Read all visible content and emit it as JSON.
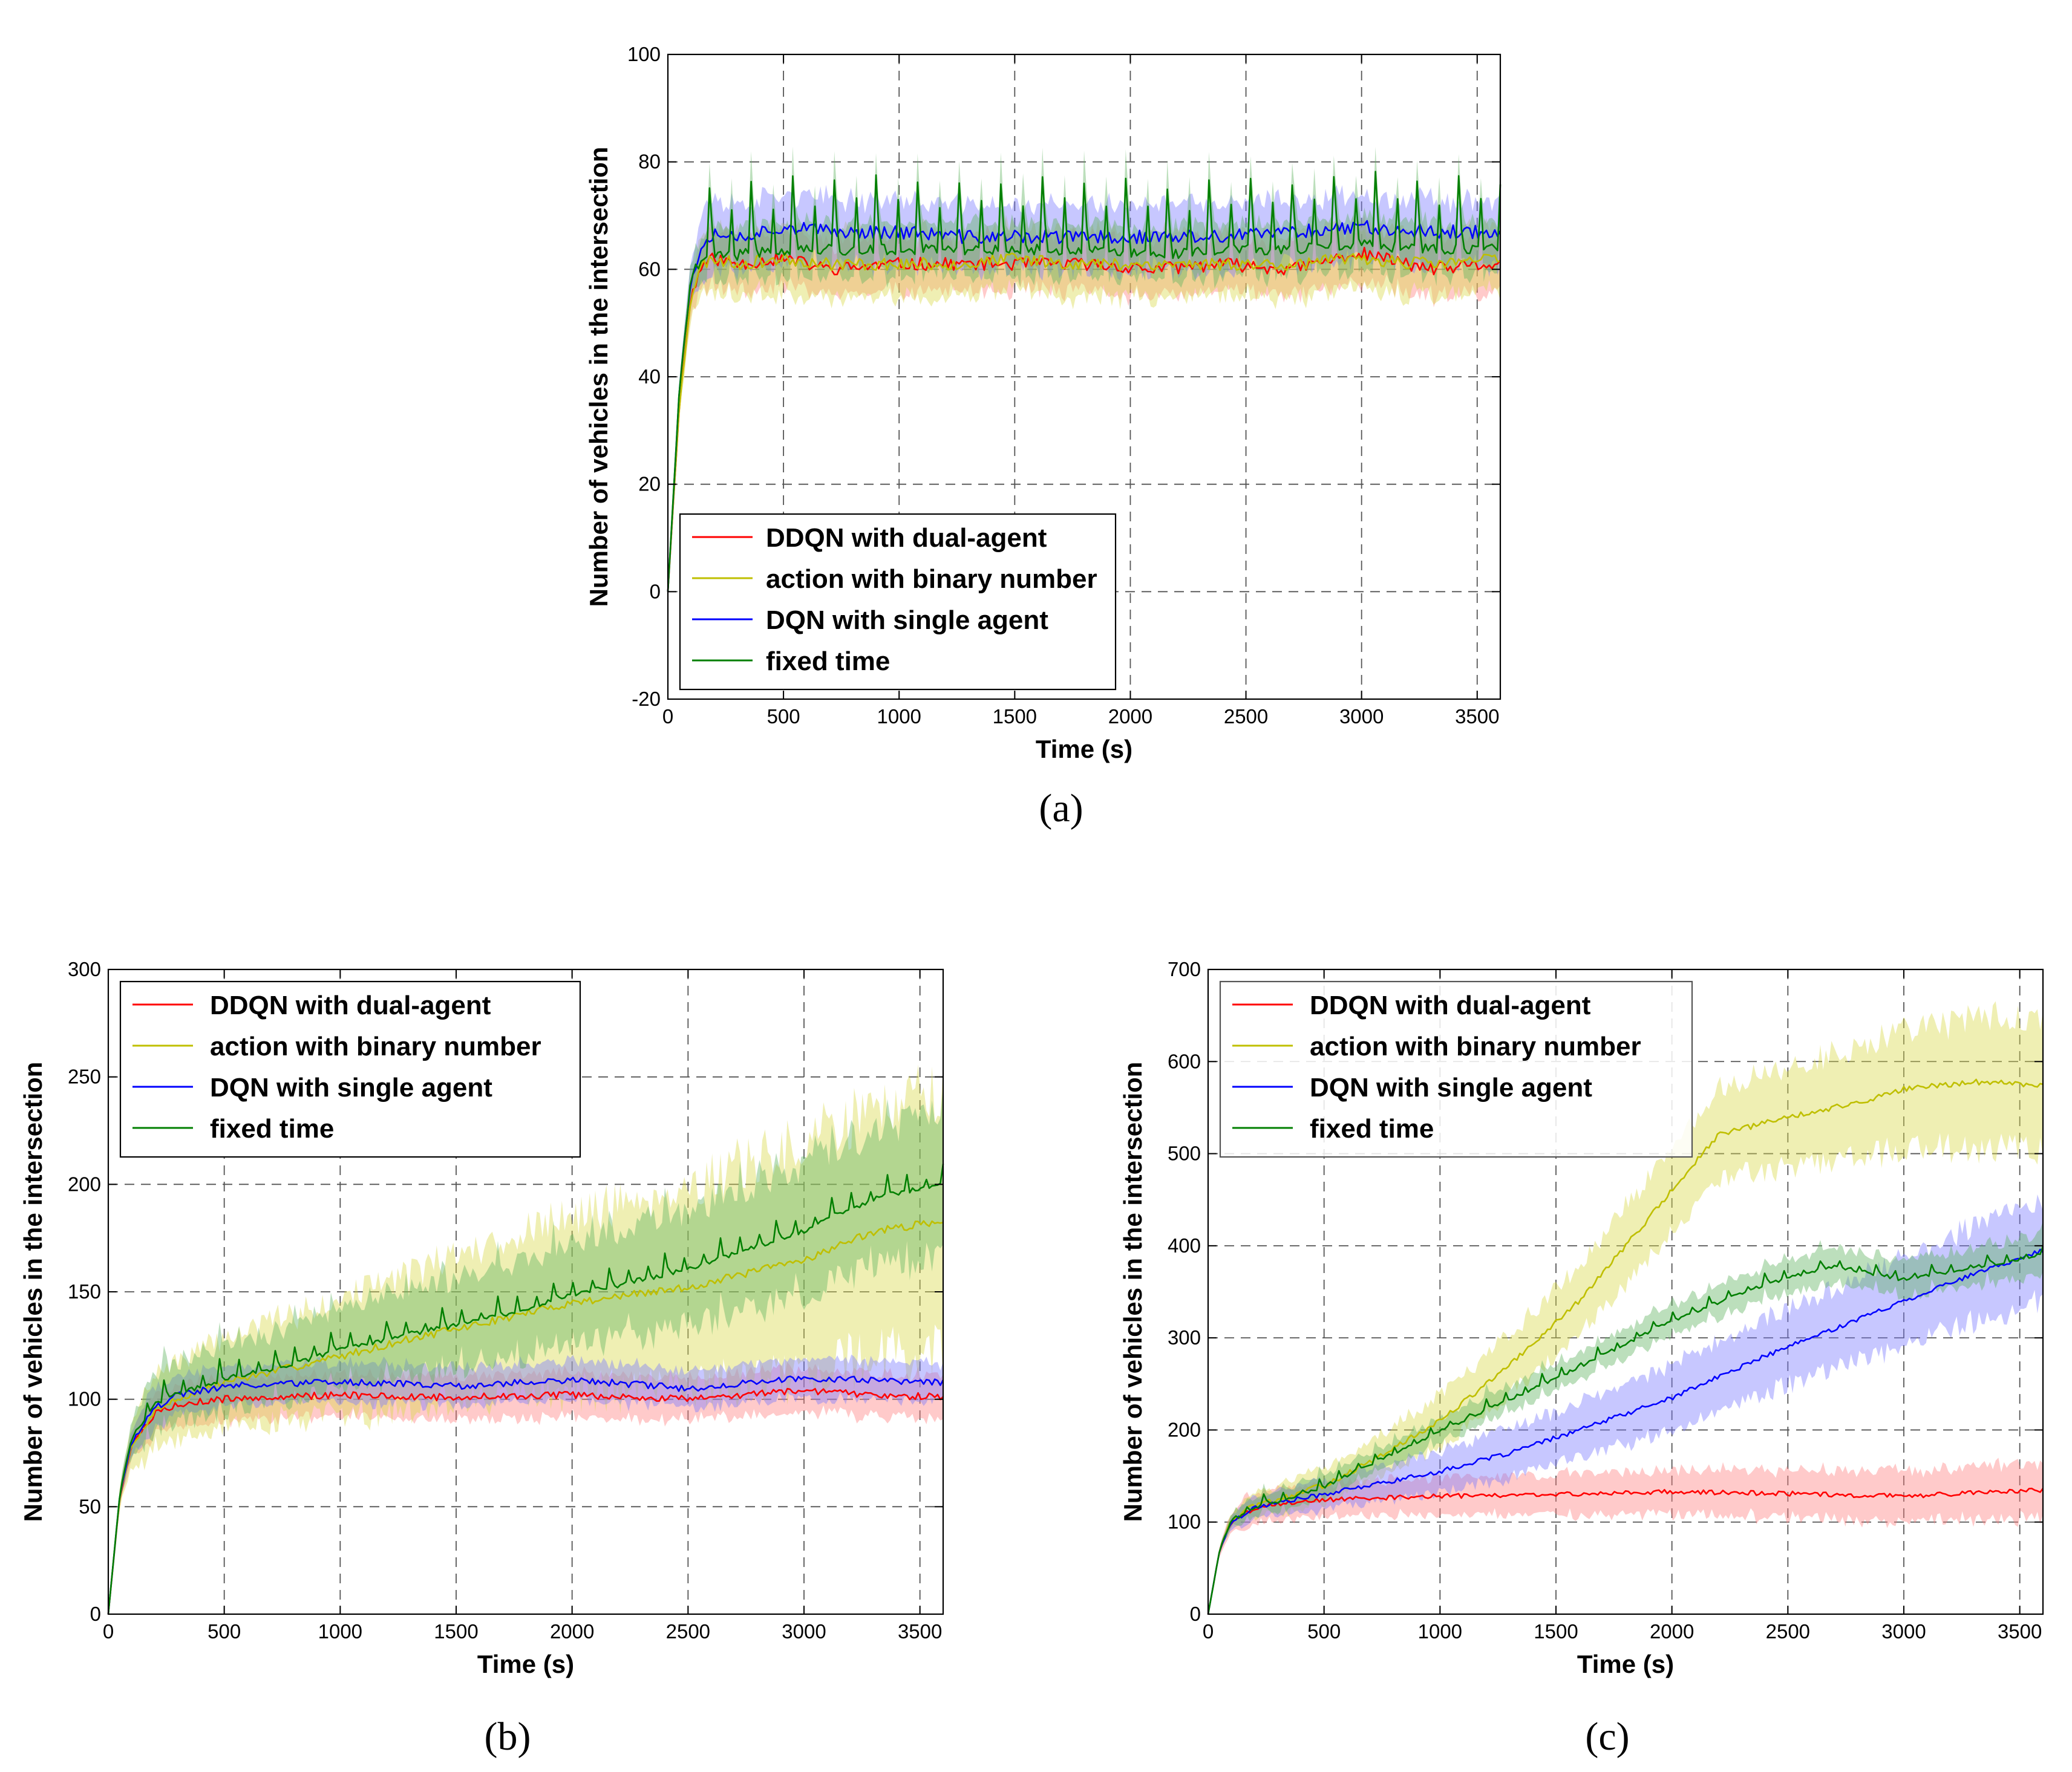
{
  "chart_data": [
    {
      "id": "a",
      "caption": "(a)",
      "type": "line",
      "title": "",
      "xlabel": "Time (s)",
      "ylabel": "Number of vehicles in the intersection",
      "xlim": [
        0,
        3600
      ],
      "ylim": [
        -20,
        100
      ],
      "xticks": [
        0,
        500,
        1000,
        1500,
        2000,
        2500,
        3000,
        3500
      ],
      "yticks": [
        -20,
        0,
        20,
        40,
        60,
        80,
        100
      ],
      "grid": true,
      "legend": {
        "location": "lower-left",
        "entries": [
          "DDQN with dual-agent",
          "action with binary number",
          "DQN with single agent",
          "fixed time"
        ]
      },
      "series": [
        {
          "name": "DDQN with dual-agent",
          "color": "#ff0000",
          "shade": "#ff8080",
          "x": [
            0,
            50,
            100,
            150,
            200,
            300,
            500,
            700,
            1000,
            1300,
            1500,
            1800,
            2100,
            2400,
            2700,
            3000,
            3300,
            3600
          ],
          "values": [
            0,
            35,
            55,
            61,
            62,
            61,
            62,
            60,
            61,
            61,
            61,
            61,
            60,
            61,
            60,
            63,
            60,
            61
          ],
          "band": 5,
          "spike": 0,
          "period": 0,
          "noise": 1.2,
          "seed": 11
        },
        {
          "name": "action with binary number",
          "color": "#bfbf00",
          "shade": "#d8d84a",
          "x": [
            0,
            50,
            100,
            150,
            200,
            300,
            500,
            700,
            1000,
            1300,
            1500,
            1800,
            2100,
            2400,
            2700,
            3000,
            3300,
            3600
          ],
          "values": [
            0,
            35,
            55,
            61,
            62,
            61,
            62,
            61,
            61,
            61,
            62,
            61,
            61,
            61,
            61,
            62,
            61,
            62
          ],
          "band": 6,
          "spike": 0,
          "period": 0,
          "noise": 1.2,
          "seed": 23
        },
        {
          "name": "DQN with single agent",
          "color": "#0000ff",
          "shade": "#7a7aff",
          "x": [
            0,
            50,
            100,
            150,
            200,
            300,
            500,
            700,
            1000,
            1300,
            1500,
            1800,
            2100,
            2400,
            2700,
            3000,
            3300,
            3600
          ],
          "values": [
            0,
            38,
            58,
            65,
            67,
            66,
            68,
            67,
            67,
            66,
            66,
            66,
            66,
            66,
            67,
            68,
            67,
            67
          ],
          "band": 6,
          "spike": 0,
          "period": 0,
          "noise": 1.3,
          "seed": 37
        },
        {
          "name": "fixed time",
          "color": "#007f00",
          "shade": "#5fb35f",
          "x": [
            0,
            50,
            100,
            150,
            200,
            300,
            500,
            700,
            1000,
            1300,
            1500,
            1800,
            2100,
            2400,
            2700,
            3000,
            3300,
            3600
          ],
          "values": [
            0,
            38,
            58,
            64,
            65,
            65,
            66,
            66,
            66,
            66,
            66,
            66,
            65,
            66,
            66,
            67,
            66,
            66
          ],
          "band": 5,
          "spike": 13,
          "period": 90,
          "noise": 1.0,
          "seed": 41
        }
      ]
    },
    {
      "id": "b",
      "caption": "(b)",
      "type": "line",
      "title": "",
      "xlabel": "Time (s)",
      "ylabel": "Number of vehicles in the intersection",
      "xlim": [
        0,
        3600
      ],
      "ylim": [
        0,
        300
      ],
      "xticks": [
        0,
        500,
        1000,
        1500,
        2000,
        2500,
        3000,
        3500
      ],
      "yticks": [
        0,
        50,
        100,
        150,
        200,
        250,
        300
      ],
      "grid": true,
      "legend": {
        "location": "top-left",
        "entries": [
          "DDQN with dual-agent",
          "action with binary number",
          "DQN with single agent",
          "fixed time"
        ]
      },
      "series": [
        {
          "name": "DDQN with dual-agent",
          "color": "#ff0000",
          "shade": "#ff8080",
          "x": [
            0,
            50,
            100,
            200,
            300,
            500,
            700,
            1000,
            1300,
            1500,
            2000,
            2500,
            3000,
            3300,
            3600
          ],
          "values": [
            0,
            55,
            78,
            93,
            98,
            100,
            101,
            102,
            101,
            101,
            102,
            100,
            104,
            102,
            101
          ],
          "band": 10,
          "spike": 0,
          "period": 0,
          "noise": 1.6,
          "seed": 5
        },
        {
          "name": "action with binary number",
          "color": "#bfbf00",
          "shade": "#d8d84a",
          "x": [
            0,
            50,
            100,
            200,
            300,
            500,
            800,
            1000,
            1300,
            1600,
            2000,
            2500,
            3000,
            3300,
            3600
          ],
          "values": [
            0,
            55,
            78,
            95,
            100,
            108,
            115,
            120,
            128,
            135,
            145,
            152,
            165,
            178,
            183
          ],
          "band": 14,
          "bandEnd": 62,
          "spike": 0,
          "period": 0,
          "noise": 1.8,
          "seed": 7
        },
        {
          "name": "DQN with single agent",
          "color": "#0000ff",
          "shade": "#7a7aff",
          "x": [
            0,
            50,
            100,
            200,
            300,
            500,
            700,
            1000,
            1300,
            1500,
            2000,
            2500,
            3000,
            3300,
            3600
          ],
          "values": [
            0,
            56,
            80,
            96,
            102,
            106,
            107,
            108,
            107,
            106,
            109,
            105,
            110,
            109,
            108
          ],
          "band": 9,
          "spike": 0,
          "period": 0,
          "noise": 1.6,
          "seed": 19
        },
        {
          "name": "fixed time",
          "color": "#007f00",
          "shade": "#5fb35f",
          "x": [
            0,
            50,
            100,
            200,
            300,
            500,
            800,
            1000,
            1300,
            1600,
            2000,
            2500,
            3000,
            3300,
            3600
          ],
          "values": [
            0,
            56,
            82,
            100,
            104,
            111,
            118,
            125,
            132,
            138,
            150,
            162,
            180,
            195,
            202
          ],
          "band": 12,
          "bandEnd": 34,
          "spike": 9,
          "period": 80,
          "noise": 1.2,
          "seed": 29
        }
      ]
    },
    {
      "id": "c",
      "caption": "(c)",
      "type": "line",
      "title": "",
      "xlabel": "Time (s)",
      "ylabel": "Number of vehicles in the intersection",
      "xlim": [
        0,
        3600
      ],
      "ylim": [
        0,
        700
      ],
      "xticks": [
        0,
        500,
        1000,
        1500,
        2000,
        2500,
        3000,
        3500
      ],
      "yticks": [
        0,
        100,
        200,
        300,
        400,
        500,
        600,
        700
      ],
      "grid": true,
      "legend": {
        "location": "top-left",
        "entries": [
          "DDQN with dual-agent",
          "action with binary number",
          "DQN with single agent",
          "fixed time"
        ]
      },
      "series": [
        {
          "name": "DDQN with dual-agent",
          "color": "#ff0000",
          "shade": "#ff8080",
          "x": [
            0,
            50,
            100,
            200,
            300,
            500,
            700,
            1000,
            1500,
            2000,
            2500,
            3000,
            3300,
            3600
          ],
          "values": [
            0,
            70,
            100,
            115,
            120,
            124,
            126,
            128,
            130,
            133,
            131,
            128,
            132,
            135
          ],
          "band": 16,
          "bandEnd": 30,
          "spike": 0,
          "period": 0,
          "noise": 2.5,
          "seed": 3
        },
        {
          "name": "action with binary number",
          "color": "#bfbf00",
          "shade": "#d8d84a",
          "x": [
            0,
            50,
            100,
            200,
            300,
            500,
            700,
            1000,
            1300,
            1600,
            1800,
            2000,
            2200,
            2500,
            2800,
            3000,
            3300,
            3600
          ],
          "values": [
            0,
            70,
            102,
            118,
            124,
            140,
            165,
            210,
            270,
            340,
            400,
            460,
            520,
            540,
            555,
            570,
            578,
            575
          ],
          "band": 10,
          "bandEnd": 75,
          "spike": 0,
          "period": 0,
          "noise": 3,
          "seed": 13
        },
        {
          "name": "DQN with single agent",
          "color": "#0000ff",
          "shade": "#7a7aff",
          "x": [
            0,
            50,
            100,
            200,
            300,
            500,
            700,
            1000,
            1300,
            1600,
            2000,
            2400,
            2800,
            3200,
            3600
          ],
          "values": [
            0,
            70,
            100,
            116,
            121,
            130,
            140,
            155,
            175,
            200,
            235,
            280,
            320,
            360,
            395
          ],
          "band": 10,
          "bandEnd": 55,
          "spike": 0,
          "period": 0,
          "noise": 2.5,
          "seed": 17
        },
        {
          "name": "fixed time",
          "color": "#007f00",
          "shade": "#5fb35f",
          "x": [
            0,
            50,
            100,
            200,
            300,
            500,
            700,
            1000,
            1300,
            1600,
            2000,
            2400,
            2700,
            3000,
            3300,
            3600
          ],
          "values": [
            0,
            70,
            102,
            118,
            124,
            140,
            165,
            200,
            235,
            270,
            320,
            360,
            380,
            365,
            378,
            392
          ],
          "band": 10,
          "bandEnd": 22,
          "spike": 10,
          "period": 80,
          "noise": 2,
          "seed": 31
        }
      ]
    }
  ]
}
